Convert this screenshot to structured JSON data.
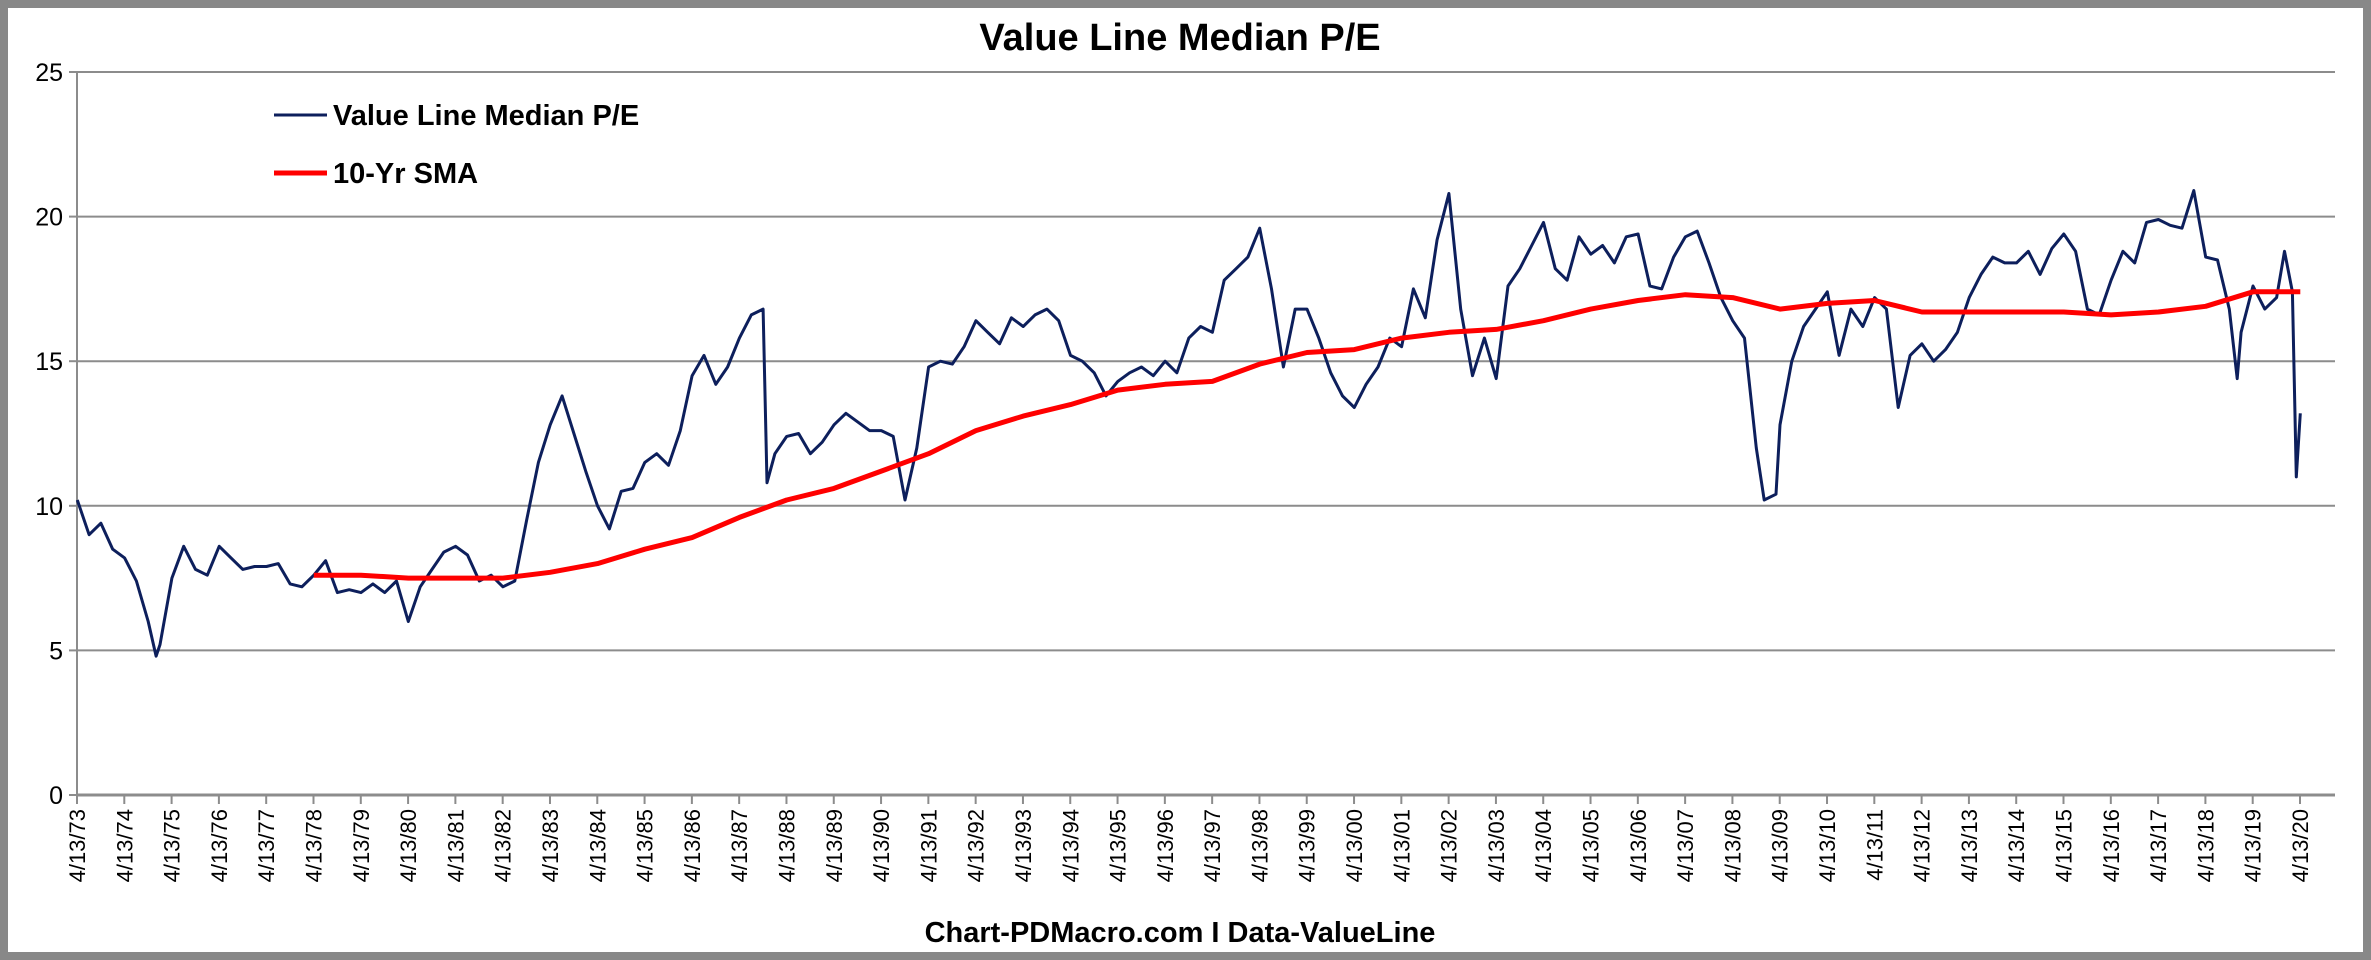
{
  "chart_data": {
    "type": "line",
    "title": "Value Line Median P/E",
    "footer": "Chart-PDMacro.com I Data-ValueLine",
    "xlabel": "",
    "ylabel": "",
    "ylim": [
      0,
      25
    ],
    "yticks": [
      0,
      5,
      10,
      15,
      20,
      25
    ],
    "xlim": [
      "1973-04-13",
      "2020-04-13"
    ],
    "xtick_labels": [
      "4/13/73",
      "4/13/74",
      "4/13/75",
      "4/13/76",
      "4/13/77",
      "4/13/78",
      "4/13/79",
      "4/13/80",
      "4/13/81",
      "4/13/82",
      "4/13/83",
      "4/13/84",
      "4/13/85",
      "4/13/86",
      "4/13/87",
      "4/13/88",
      "4/13/89",
      "4/13/90",
      "4/13/91",
      "4/13/92",
      "4/13/93",
      "4/13/94",
      "4/13/95",
      "4/13/96",
      "4/13/97",
      "4/13/98",
      "4/13/99",
      "4/13/00",
      "4/13/01",
      "4/13/02",
      "4/13/03",
      "4/13/04",
      "4/13/05",
      "4/13/06",
      "4/13/07",
      "4/13/08",
      "4/13/09",
      "4/13/10",
      "4/13/11",
      "4/13/12",
      "4/13/13",
      "4/13/14",
      "4/13/15",
      "4/13/16",
      "4/13/17",
      "4/13/18",
      "4/13/19",
      "4/13/20"
    ],
    "grid": "horizontal",
    "legend_position": "top-left",
    "series": [
      {
        "name": "Value Line Median P/E",
        "color": "#0d1f5c",
        "points": [
          [
            "1973-04",
            10.2
          ],
          [
            "1973-07",
            9.0
          ],
          [
            "1973-10",
            9.4
          ],
          [
            "1974-01",
            8.5
          ],
          [
            "1974-04",
            8.2
          ],
          [
            "1974-07",
            7.4
          ],
          [
            "1974-10",
            6.0
          ],
          [
            "1974-12",
            4.8
          ],
          [
            "1975-01",
            5.2
          ],
          [
            "1975-04",
            7.5
          ],
          [
            "1975-07",
            8.6
          ],
          [
            "1975-10",
            7.8
          ],
          [
            "1976-01",
            7.6
          ],
          [
            "1976-04",
            8.6
          ],
          [
            "1976-07",
            8.2
          ],
          [
            "1976-10",
            7.8
          ],
          [
            "1977-01",
            7.9
          ],
          [
            "1977-04",
            7.9
          ],
          [
            "1977-07",
            8.0
          ],
          [
            "1977-10",
            7.3
          ],
          [
            "1978-01",
            7.2
          ],
          [
            "1978-04",
            7.6
          ],
          [
            "1978-07",
            8.1
          ],
          [
            "1978-10",
            7.0
          ],
          [
            "1979-01",
            7.1
          ],
          [
            "1979-04",
            7.0
          ],
          [
            "1979-07",
            7.3
          ],
          [
            "1979-10",
            7.0
          ],
          [
            "1980-01",
            7.4
          ],
          [
            "1980-04",
            6.0
          ],
          [
            "1980-07",
            7.2
          ],
          [
            "1980-10",
            7.8
          ],
          [
            "1981-01",
            8.4
          ],
          [
            "1981-04",
            8.6
          ],
          [
            "1981-07",
            8.3
          ],
          [
            "1981-10",
            7.4
          ],
          [
            "1982-01",
            7.6
          ],
          [
            "1982-04",
            7.2
          ],
          [
            "1982-07",
            7.4
          ],
          [
            "1982-10",
            9.5
          ],
          [
            "1983-01",
            11.5
          ],
          [
            "1983-04",
            12.8
          ],
          [
            "1983-07",
            13.8
          ],
          [
            "1983-10",
            12.5
          ],
          [
            "1984-01",
            11.2
          ],
          [
            "1984-04",
            10.0
          ],
          [
            "1984-07",
            9.2
          ],
          [
            "1984-10",
            10.5
          ],
          [
            "1985-01",
            10.6
          ],
          [
            "1985-04",
            11.5
          ],
          [
            "1985-07",
            11.8
          ],
          [
            "1985-10",
            11.4
          ],
          [
            "1986-01",
            12.6
          ],
          [
            "1986-04",
            14.5
          ],
          [
            "1986-07",
            15.2
          ],
          [
            "1986-10",
            14.2
          ],
          [
            "1987-01",
            14.8
          ],
          [
            "1987-04",
            15.8
          ],
          [
            "1987-07",
            16.6
          ],
          [
            "1987-10",
            16.8
          ],
          [
            "1987-11",
            10.8
          ],
          [
            "1988-01",
            11.8
          ],
          [
            "1988-04",
            12.4
          ],
          [
            "1988-07",
            12.5
          ],
          [
            "1988-10",
            11.8
          ],
          [
            "1989-01",
            12.2
          ],
          [
            "1989-04",
            12.8
          ],
          [
            "1989-07",
            13.2
          ],
          [
            "1989-10",
            12.9
          ],
          [
            "1990-01",
            12.6
          ],
          [
            "1990-04",
            12.6
          ],
          [
            "1990-07",
            12.4
          ],
          [
            "1990-10",
            10.2
          ],
          [
            "1991-01",
            12.0
          ],
          [
            "1991-04",
            14.8
          ],
          [
            "1991-07",
            15.0
          ],
          [
            "1991-10",
            14.9
          ],
          [
            "1992-01",
            15.5
          ],
          [
            "1992-04",
            16.4
          ],
          [
            "1992-07",
            16.0
          ],
          [
            "1992-10",
            15.6
          ],
          [
            "1993-01",
            16.5
          ],
          [
            "1993-04",
            16.2
          ],
          [
            "1993-07",
            16.6
          ],
          [
            "1993-10",
            16.8
          ],
          [
            "1994-01",
            16.4
          ],
          [
            "1994-04",
            15.2
          ],
          [
            "1994-07",
            15.0
          ],
          [
            "1994-10",
            14.6
          ],
          [
            "1995-01",
            13.8
          ],
          [
            "1995-04",
            14.3
          ],
          [
            "1995-07",
            14.6
          ],
          [
            "1995-10",
            14.8
          ],
          [
            "1996-01",
            14.5
          ],
          [
            "1996-04",
            15.0
          ],
          [
            "1996-07",
            14.6
          ],
          [
            "1996-10",
            15.8
          ],
          [
            "1997-01",
            16.2
          ],
          [
            "1997-04",
            16.0
          ],
          [
            "1997-07",
            17.8
          ],
          [
            "1997-10",
            18.2
          ],
          [
            "1998-01",
            18.6
          ],
          [
            "1998-04",
            19.6
          ],
          [
            "1998-07",
            17.5
          ],
          [
            "1998-10",
            14.8
          ],
          [
            "1999-01",
            16.8
          ],
          [
            "1999-04",
            16.8
          ],
          [
            "1999-07",
            15.8
          ],
          [
            "1999-10",
            14.6
          ],
          [
            "2000-01",
            13.8
          ],
          [
            "2000-04",
            13.4
          ],
          [
            "2000-07",
            14.2
          ],
          [
            "2000-10",
            14.8
          ],
          [
            "2001-01",
            15.8
          ],
          [
            "2001-04",
            15.5
          ],
          [
            "2001-07",
            17.5
          ],
          [
            "2001-10",
            16.5
          ],
          [
            "2002-01",
            19.2
          ],
          [
            "2002-04",
            20.8
          ],
          [
            "2002-07",
            16.8
          ],
          [
            "2002-10",
            14.5
          ],
          [
            "2003-01",
            15.8
          ],
          [
            "2003-04",
            14.4
          ],
          [
            "2003-07",
            17.6
          ],
          [
            "2003-10",
            18.2
          ],
          [
            "2004-01",
            19.0
          ],
          [
            "2004-04",
            19.8
          ],
          [
            "2004-07",
            18.2
          ],
          [
            "2004-10",
            17.8
          ],
          [
            "2005-01",
            19.3
          ],
          [
            "2005-04",
            18.7
          ],
          [
            "2005-07",
            19.0
          ],
          [
            "2005-10",
            18.4
          ],
          [
            "2006-01",
            19.3
          ],
          [
            "2006-04",
            19.4
          ],
          [
            "2006-07",
            17.6
          ],
          [
            "2006-10",
            17.5
          ],
          [
            "2007-01",
            18.6
          ],
          [
            "2007-04",
            19.3
          ],
          [
            "2007-07",
            19.5
          ],
          [
            "2007-10",
            18.4
          ],
          [
            "2008-01",
            17.2
          ],
          [
            "2008-04",
            16.4
          ],
          [
            "2008-07",
            15.8
          ],
          [
            "2008-10",
            12.0
          ],
          [
            "2008-12",
            10.2
          ],
          [
            "2009-03",
            10.4
          ],
          [
            "2009-04",
            12.8
          ],
          [
            "2009-07",
            15.0
          ],
          [
            "2009-10",
            16.2
          ],
          [
            "2010-01",
            16.8
          ],
          [
            "2010-04",
            17.4
          ],
          [
            "2010-07",
            15.2
          ],
          [
            "2010-10",
            16.8
          ],
          [
            "2011-01",
            16.2
          ],
          [
            "2011-04",
            17.2
          ],
          [
            "2011-07",
            16.8
          ],
          [
            "2011-10",
            13.4
          ],
          [
            "2012-01",
            15.2
          ],
          [
            "2012-04",
            15.6
          ],
          [
            "2012-07",
            15.0
          ],
          [
            "2012-10",
            15.4
          ],
          [
            "2013-01",
            16.0
          ],
          [
            "2013-04",
            17.2
          ],
          [
            "2013-07",
            18.0
          ],
          [
            "2013-10",
            18.6
          ],
          [
            "2014-01",
            18.4
          ],
          [
            "2014-04",
            18.4
          ],
          [
            "2014-07",
            18.8
          ],
          [
            "2014-10",
            18.0
          ],
          [
            "2015-01",
            18.9
          ],
          [
            "2015-04",
            19.4
          ],
          [
            "2015-07",
            18.8
          ],
          [
            "2015-10",
            16.8
          ],
          [
            "2016-01",
            16.6
          ],
          [
            "2016-04",
            17.8
          ],
          [
            "2016-07",
            18.8
          ],
          [
            "2016-10",
            18.4
          ],
          [
            "2017-01",
            19.8
          ],
          [
            "2017-04",
            19.9
          ],
          [
            "2017-07",
            19.7
          ],
          [
            "2017-10",
            19.6
          ],
          [
            "2018-01",
            20.9
          ],
          [
            "2018-04",
            18.6
          ],
          [
            "2018-07",
            18.5
          ],
          [
            "2018-10",
            16.8
          ],
          [
            "2018-12",
            14.4
          ],
          [
            "2019-01",
            16.0
          ],
          [
            "2019-04",
            17.6
          ],
          [
            "2019-07",
            16.8
          ],
          [
            "2019-10",
            17.2
          ],
          [
            "2019-12",
            18.8
          ],
          [
            "2020-02",
            17.4
          ],
          [
            "2020-03",
            11.0
          ],
          [
            "2020-04",
            13.2
          ]
        ]
      },
      {
        "name": "10-Yr SMA",
        "color": "#ff0000",
        "points": [
          [
            "1978-04",
            7.6
          ],
          [
            "1979-04",
            7.6
          ],
          [
            "1980-04",
            7.5
          ],
          [
            "1981-04",
            7.5
          ],
          [
            "1982-04",
            7.5
          ],
          [
            "1983-04",
            7.7
          ],
          [
            "1984-04",
            8.0
          ],
          [
            "1985-04",
            8.5
          ],
          [
            "1986-04",
            8.9
          ],
          [
            "1987-04",
            9.6
          ],
          [
            "1988-04",
            10.2
          ],
          [
            "1989-04",
            10.6
          ],
          [
            "1990-04",
            11.2
          ],
          [
            "1991-04",
            11.8
          ],
          [
            "1992-04",
            12.6
          ],
          [
            "1993-04",
            13.1
          ],
          [
            "1994-04",
            13.5
          ],
          [
            "1995-04",
            14.0
          ],
          [
            "1996-04",
            14.2
          ],
          [
            "1997-04",
            14.3
          ],
          [
            "1998-04",
            14.9
          ],
          [
            "1999-04",
            15.3
          ],
          [
            "2000-04",
            15.4
          ],
          [
            "2001-04",
            15.8
          ],
          [
            "2002-04",
            16.0
          ],
          [
            "2003-04",
            16.1
          ],
          [
            "2004-04",
            16.4
          ],
          [
            "2005-04",
            16.8
          ],
          [
            "2006-04",
            17.1
          ],
          [
            "2007-04",
            17.3
          ],
          [
            "2008-04",
            17.2
          ],
          [
            "2009-04",
            16.8
          ],
          [
            "2010-04",
            17.0
          ],
          [
            "2011-04",
            17.1
          ],
          [
            "2012-04",
            16.7
          ],
          [
            "2013-04",
            16.7
          ],
          [
            "2014-04",
            16.7
          ],
          [
            "2015-04",
            16.7
          ],
          [
            "2016-04",
            16.6
          ],
          [
            "2017-04",
            16.7
          ],
          [
            "2018-04",
            16.9
          ],
          [
            "2019-04",
            17.4
          ],
          [
            "2020-04",
            17.4
          ]
        ]
      }
    ]
  }
}
